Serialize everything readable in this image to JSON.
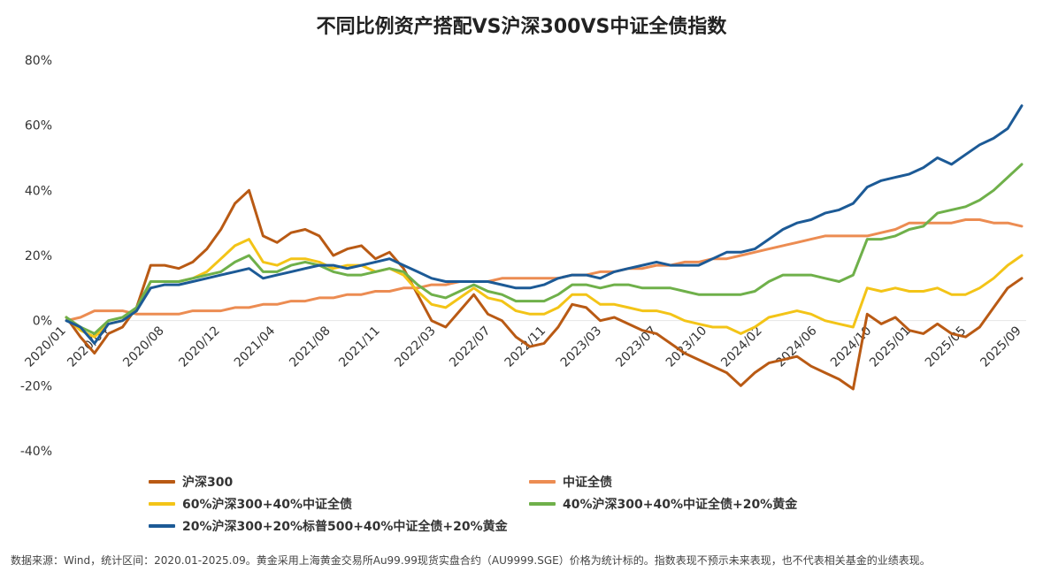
{
  "page": {
    "note": "数据来源：Wind，统计区间：2020.01-2025.09。黄金采用上海黄金交易所Au99.99现货实盘合约（AU9999.SGE）价格为统计标的。指数表现不预示未来表现，也不代表相关基金的业绩表现。"
  },
  "chart_data": {
    "type": "line",
    "title": "不同比例资产搭配VS沪深300VS中证全债指数",
    "xlabel": "",
    "ylabel": "",
    "ylim": [
      -40,
      80
    ],
    "yticks": [
      "-40%",
      "-20%",
      "0%",
      "20%",
      "40%",
      "60%",
      "80%"
    ],
    "ytick_values": [
      -40,
      -20,
      0,
      20,
      40,
      60,
      80
    ],
    "xticks": [
      "2020/01",
      "2020/04",
      "2020/08",
      "2020/12",
      "2021/04",
      "2021/08",
      "2021/11",
      "2022/03",
      "2022/07",
      "2022/11",
      "2023/03",
      "2023/07",
      "2023/10",
      "2024/02",
      "2024/06",
      "2024/10",
      "2025/01",
      "2025/05",
      "2025/09"
    ],
    "xtick_pos": [
      0.0,
      0.0488,
      0.1131,
      0.1774,
      0.2411,
      0.3048,
      0.3619,
      0.4262,
      0.4892,
      0.5529,
      0.6173,
      0.681,
      0.7387,
      0.8024,
      0.8655,
      0.9285,
      0.9735,
      1.0375,
      1.1012
    ],
    "grid": false,
    "legend_position": "bottom",
    "x": [
      "2020-01",
      "2020-02",
      "2020-03",
      "2020-04",
      "2020-05",
      "2020-06",
      "2020-07",
      "2020-08",
      "2020-09",
      "2020-10",
      "2020-11",
      "2020-12",
      "2021-01",
      "2021-02",
      "2021-03",
      "2021-04",
      "2021-05",
      "2021-06",
      "2021-07",
      "2021-08",
      "2021-09",
      "2021-10",
      "2021-11",
      "2021-12",
      "2022-01",
      "2022-02",
      "2022-03",
      "2022-04",
      "2022-05",
      "2022-06",
      "2022-07",
      "2022-08",
      "2022-09",
      "2022-10",
      "2022-11",
      "2022-12",
      "2023-01",
      "2023-02",
      "2023-03",
      "2023-04",
      "2023-05",
      "2023-06",
      "2023-07",
      "2023-08",
      "2023-09",
      "2023-10",
      "2023-11",
      "2023-12",
      "2024-01",
      "2024-02",
      "2024-03",
      "2024-04",
      "2024-05",
      "2024-06",
      "2024-07",
      "2024-08",
      "2024-09",
      "2024-10",
      "2024-11",
      "2024-12",
      "2025-01",
      "2025-02",
      "2025-03",
      "2025-04",
      "2025-05",
      "2025-06",
      "2025-07",
      "2025-08",
      "2025-09"
    ],
    "series": [
      {
        "name": "沪深300",
        "color": "#b95a14",
        "width": 3,
        "values": [
          1,
          -5,
          -10,
          -4,
          -2,
          4,
          17,
          17,
          16,
          18,
          22,
          28,
          36,
          40,
          26,
          24,
          27,
          28,
          26,
          20,
          22,
          23,
          19,
          21,
          16,
          8,
          0,
          -2,
          3,
          8,
          2,
          0,
          -5,
          -8,
          -7,
          -2,
          5,
          4,
          0,
          1,
          -1,
          -3,
          -4,
          -7,
          -10,
          -12,
          -14,
          -16,
          -20,
          -16,
          -13,
          -12,
          -11,
          -14,
          -16,
          -18,
          -21,
          2,
          -1,
          1,
          -3,
          -4,
          -1,
          -4,
          -5,
          -2,
          4,
          10,
          13
        ]
      },
      {
        "name": "中证全债",
        "color": "#ec8c52",
        "width": 3,
        "values": [
          0,
          1,
          3,
          3,
          3,
          2,
          2,
          2,
          2,
          3,
          3,
          3,
          4,
          4,
          5,
          5,
          6,
          6,
          7,
          7,
          8,
          8,
          9,
          9,
          10,
          10,
          11,
          11,
          12,
          12,
          12,
          13,
          13,
          13,
          13,
          13,
          14,
          14,
          15,
          15,
          16,
          16,
          17,
          17,
          18,
          18,
          19,
          19,
          20,
          21,
          22,
          23,
          24,
          25,
          26,
          26,
          26,
          26,
          27,
          28,
          30,
          30,
          30,
          30,
          31,
          31,
          30,
          30,
          29
        ]
      },
      {
        "name": "60%沪深300+40%中证全债",
        "color": "#f3c417",
        "width": 3,
        "values": [
          1,
          -3,
          -5,
          -1,
          0,
          3,
          12,
          12,
          12,
          13,
          15,
          19,
          23,
          25,
          18,
          17,
          19,
          19,
          18,
          16,
          17,
          17,
          15,
          16,
          14,
          9,
          5,
          4,
          7,
          10,
          7,
          6,
          3,
          2,
          2,
          4,
          8,
          8,
          5,
          5,
          4,
          3,
          3,
          2,
          0,
          -1,
          -2,
          -2,
          -4,
          -2,
          1,
          2,
          3,
          2,
          0,
          -1,
          -2,
          10,
          9,
          10,
          9,
          9,
          10,
          8,
          8,
          10,
          13,
          17,
          20
        ]
      },
      {
        "name": "40%沪深300+40%中证全债+20%黄金",
        "color": "#6fb04a",
        "width": 3,
        "values": [
          1,
          -2,
          -4,
          0,
          1,
          4,
          12,
          12,
          12,
          13,
          14,
          15,
          18,
          20,
          15,
          15,
          17,
          18,
          17,
          15,
          14,
          14,
          15,
          16,
          15,
          11,
          8,
          7,
          9,
          11,
          9,
          8,
          6,
          6,
          6,
          8,
          11,
          11,
          10,
          11,
          11,
          10,
          10,
          10,
          9,
          8,
          8,
          8,
          8,
          9,
          12,
          14,
          14,
          14,
          13,
          12,
          14,
          25,
          25,
          26,
          28,
          29,
          33,
          34,
          35,
          37,
          40,
          44,
          48
        ]
      },
      {
        "name": "20%沪深300+20%标普500+40%中证全债+20%黄金",
        "color": "#1c5a96",
        "width": 3,
        "values": [
          0,
          -2,
          -7,
          -1,
          0,
          3,
          10,
          11,
          11,
          12,
          13,
          14,
          15,
          16,
          13,
          14,
          15,
          16,
          17,
          17,
          16,
          17,
          18,
          19,
          17,
          15,
          13,
          12,
          12,
          12,
          12,
          11,
          10,
          10,
          11,
          13,
          14,
          14,
          13,
          15,
          16,
          17,
          18,
          17,
          17,
          17,
          19,
          21,
          21,
          22,
          25,
          28,
          30,
          31,
          33,
          34,
          36,
          41,
          43,
          44,
          45,
          47,
          50,
          48,
          51,
          54,
          56,
          59,
          66
        ]
      }
    ]
  }
}
